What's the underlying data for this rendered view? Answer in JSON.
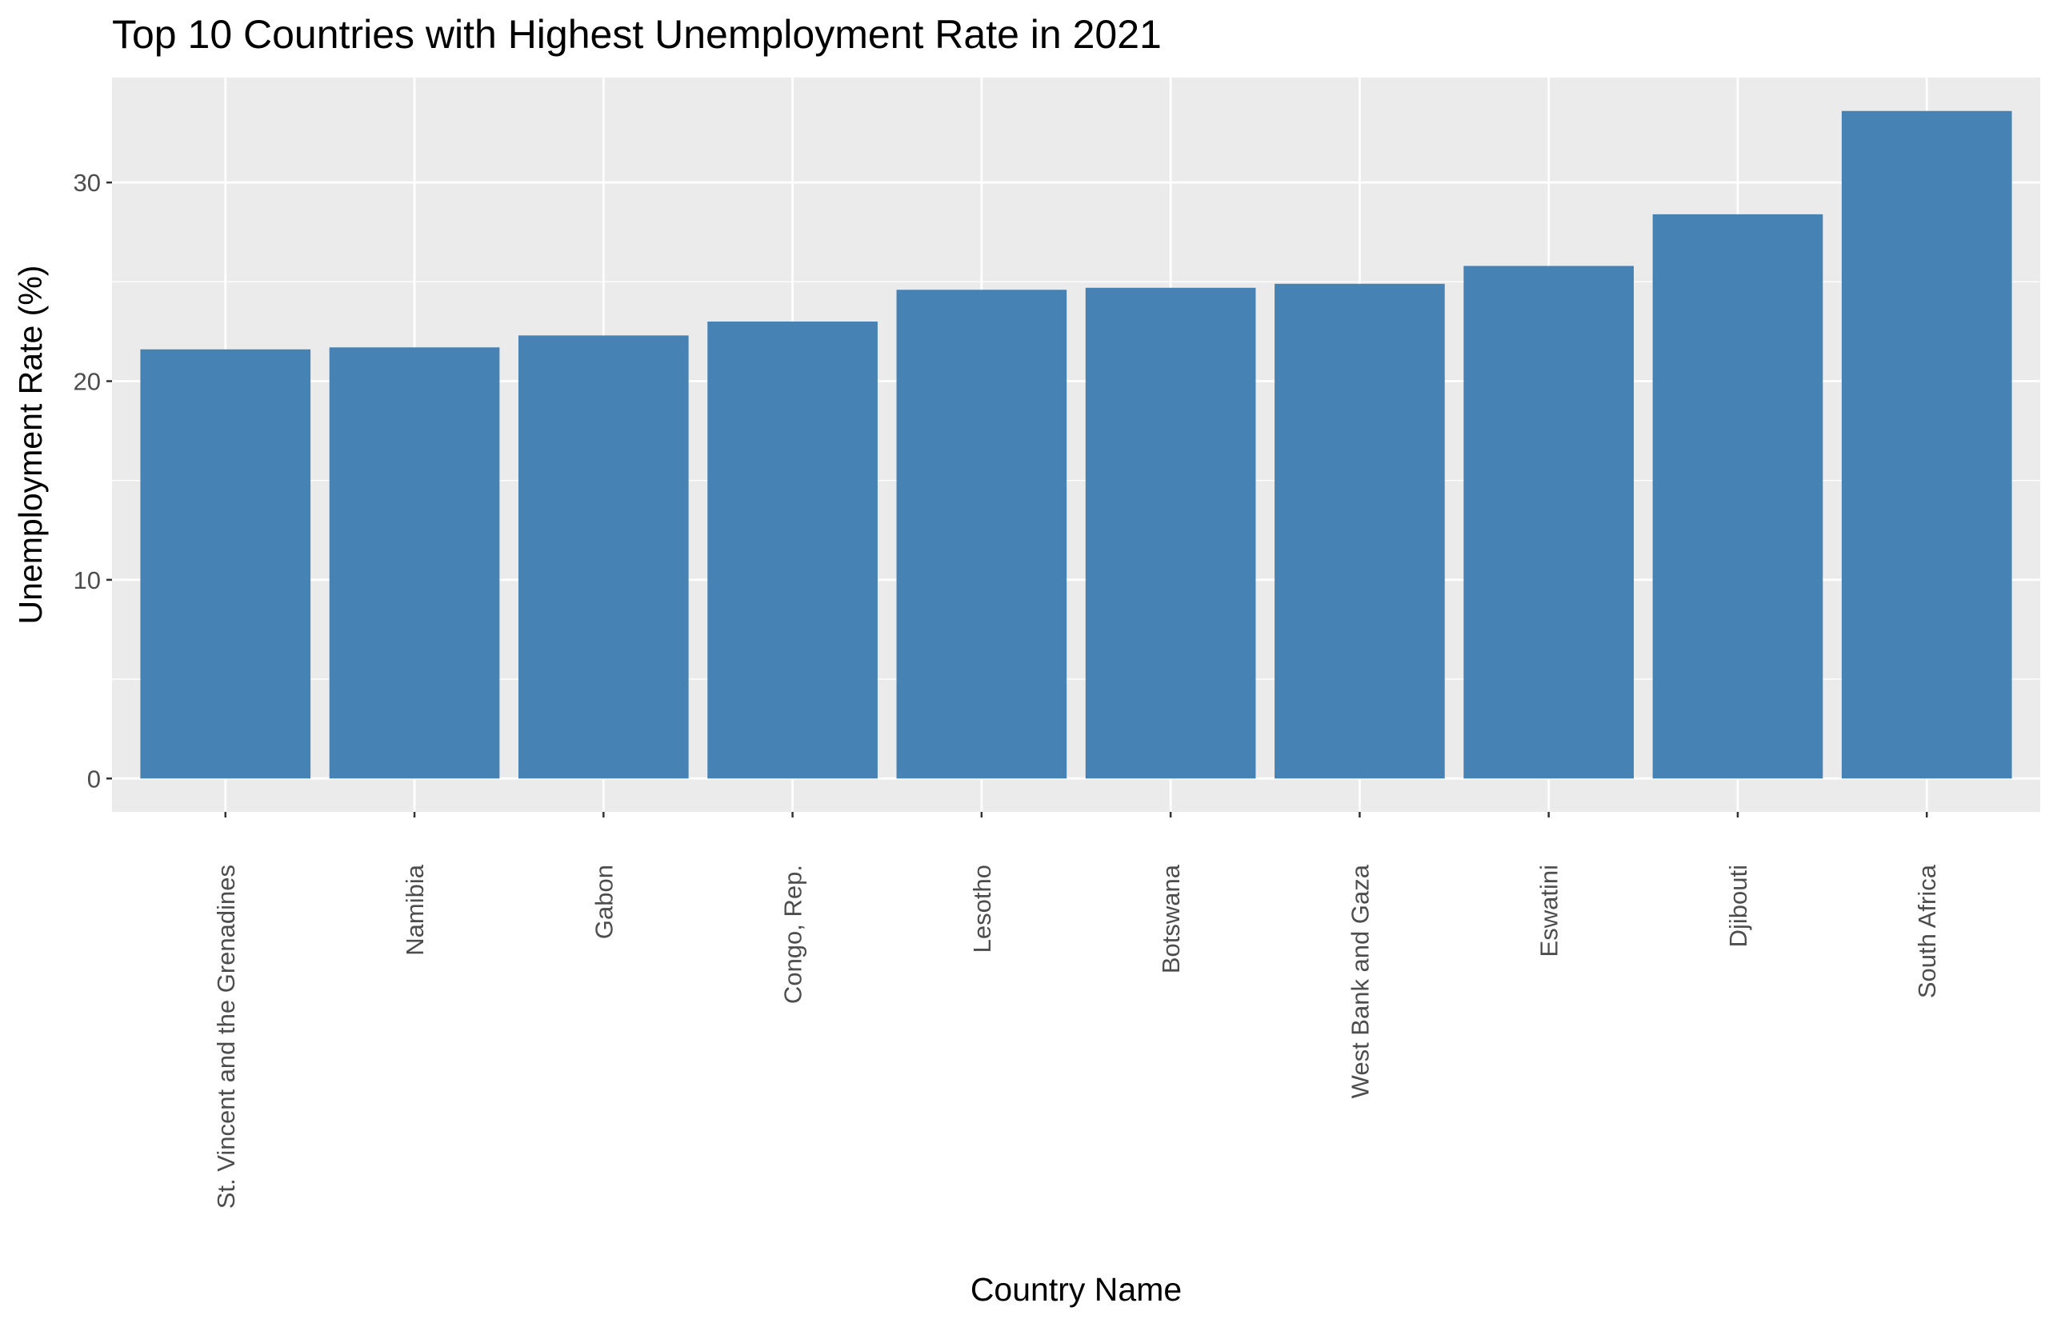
{
  "chart_data": {
    "type": "bar",
    "title": "Top 10 Countries with Highest Unemployment Rate in 2021",
    "xlabel": "Country Name",
    "ylabel": "Unemployment Rate (%)",
    "categories": [
      "St. Vincent and the Grenadines",
      "Namibia",
      "Gabon",
      "Congo, Rep.",
      "Lesotho",
      "Botswana",
      "West Bank and Gaza",
      "Eswatini",
      "Djibouti",
      "South Africa"
    ],
    "values": [
      21.6,
      21.7,
      22.3,
      23.0,
      24.6,
      24.7,
      24.9,
      25.8,
      28.4,
      33.6
    ],
    "ylim": [
      -1.68,
      35.28
    ],
    "yticks": [
      0,
      10,
      20,
      30
    ],
    "yticks_minor": [
      5,
      15,
      25
    ],
    "grid": true,
    "bar_color": "#4682b4",
    "panel_background": "#ebebeb",
    "grid_color": "#ffffff"
  }
}
